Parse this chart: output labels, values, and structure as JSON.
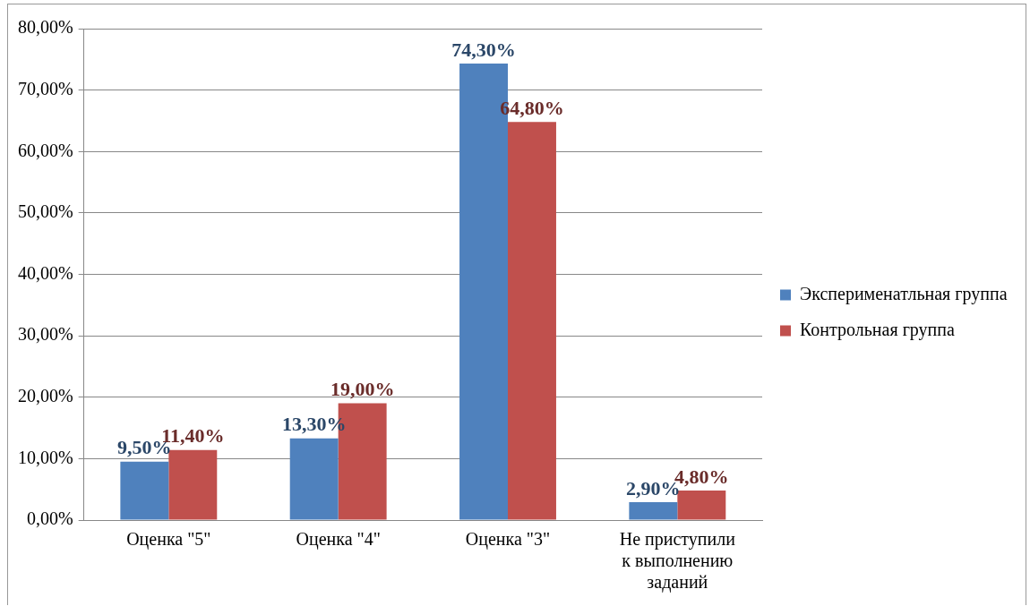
{
  "chart_data": {
    "type": "bar",
    "categories": [
      "Оценка \"5\"",
      "Оценка \"4\"",
      "Оценка \"3\"",
      "Не приступили к выполнению заданий"
    ],
    "series": [
      {
        "name": "Эксперименатльная группа",
        "color": "#4f81bd",
        "values": [
          9.5,
          13.3,
          74.3,
          2.9
        ],
        "value_labels": [
          "9,50%",
          "13,30%",
          "74,30%",
          "2,90%"
        ]
      },
      {
        "name": "Контрольная группа",
        "color": "#c0504d",
        "values": [
          11.4,
          19.0,
          64.8,
          4.8
        ],
        "value_labels": [
          "11,40%",
          "19,00%",
          "64,80%",
          "4,80%"
        ]
      }
    ],
    "ylim": [
      0,
      80
    ],
    "yticks": [
      {
        "value": 0,
        "label": "0,00%"
      },
      {
        "value": 10,
        "label": "10,00%"
      },
      {
        "value": 20,
        "label": "20,00%"
      },
      {
        "value": 30,
        "label": "30,00%"
      },
      {
        "value": 40,
        "label": "40,00%"
      },
      {
        "value": 50,
        "label": "50,00%"
      },
      {
        "value": 60,
        "label": "60,00%"
      },
      {
        "value": 70,
        "label": "70,00%"
      },
      {
        "value": 80,
        "label": "80,00%"
      }
    ],
    "grid": "y",
    "legend": "right"
  }
}
